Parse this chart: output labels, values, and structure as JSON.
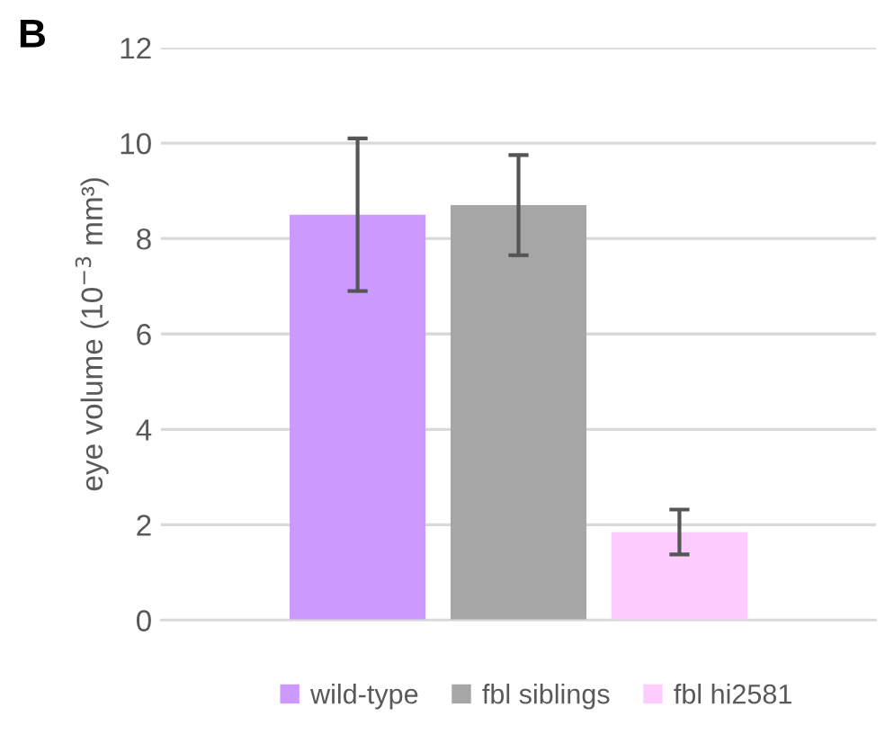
{
  "chart_data": {
    "type": "bar",
    "ylabel": "eye volume (10$^{−3}$ mm³)",
    "annotations": [
      "B"
    ],
    "categories": [
      null
    ],
    "series": [
      {
        "name": "wild-type",
        "color": "#cc99ff",
        "values": [
          8.5
        ],
        "errors": [
          1.6
        ]
      },
      {
        "name": "fbl siblings",
        "color": "#a6a6a6",
        "values": [
          8.7
        ],
        "errors": [
          1.05
        ]
      },
      {
        "name": "fbl hi2581",
        "color": "#ffccff",
        "values": [
          1.85
        ],
        "errors": [
          0.47
        ]
      }
    ],
    "ylim": [
      0,
      12
    ],
    "yticks": [
      0,
      2,
      4,
      6,
      8,
      10,
      12
    ],
    "grid": "y",
    "legend": "bottom"
  }
}
